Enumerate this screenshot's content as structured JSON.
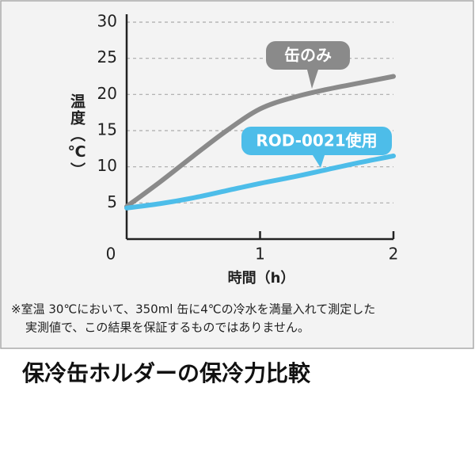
{
  "chart_data": {
    "type": "line",
    "title": "保冷缶ホルダーの保冷力比較",
    "x_label": "時間（h）",
    "y_label": "温度（℃）",
    "note": [
      "※室温 30℃において、350ml 缶に4℃の冷水を満量入れて測定した",
      "実測値で、この結果を保証するものではありません。"
    ],
    "x": [
      0,
      0.25,
      0.5,
      0.75,
      1,
      1.25,
      1.5,
      1.75,
      2
    ],
    "series": [
      {
        "name": "缶のみ",
        "color": "#8a8a8a",
        "values": [
          4.5,
          7.9,
          11.5,
          15,
          18,
          19.6,
          20.7,
          21.6,
          22.5
        ]
      },
      {
        "name": "ROD-0021使用",
        "color": "#4dbde9",
        "values": [
          4.3,
          4.9,
          5.7,
          6.7,
          7.7,
          8.6,
          9.6,
          10.6,
          11.5
        ]
      }
    ],
    "xlim": [
      0,
      2
    ],
    "xticks": [
      0,
      1,
      2
    ],
    "ylim": [
      0,
      30
    ],
    "yticks": [
      5,
      10,
      15,
      20,
      25,
      30
    ],
    "grid": true
  }
}
